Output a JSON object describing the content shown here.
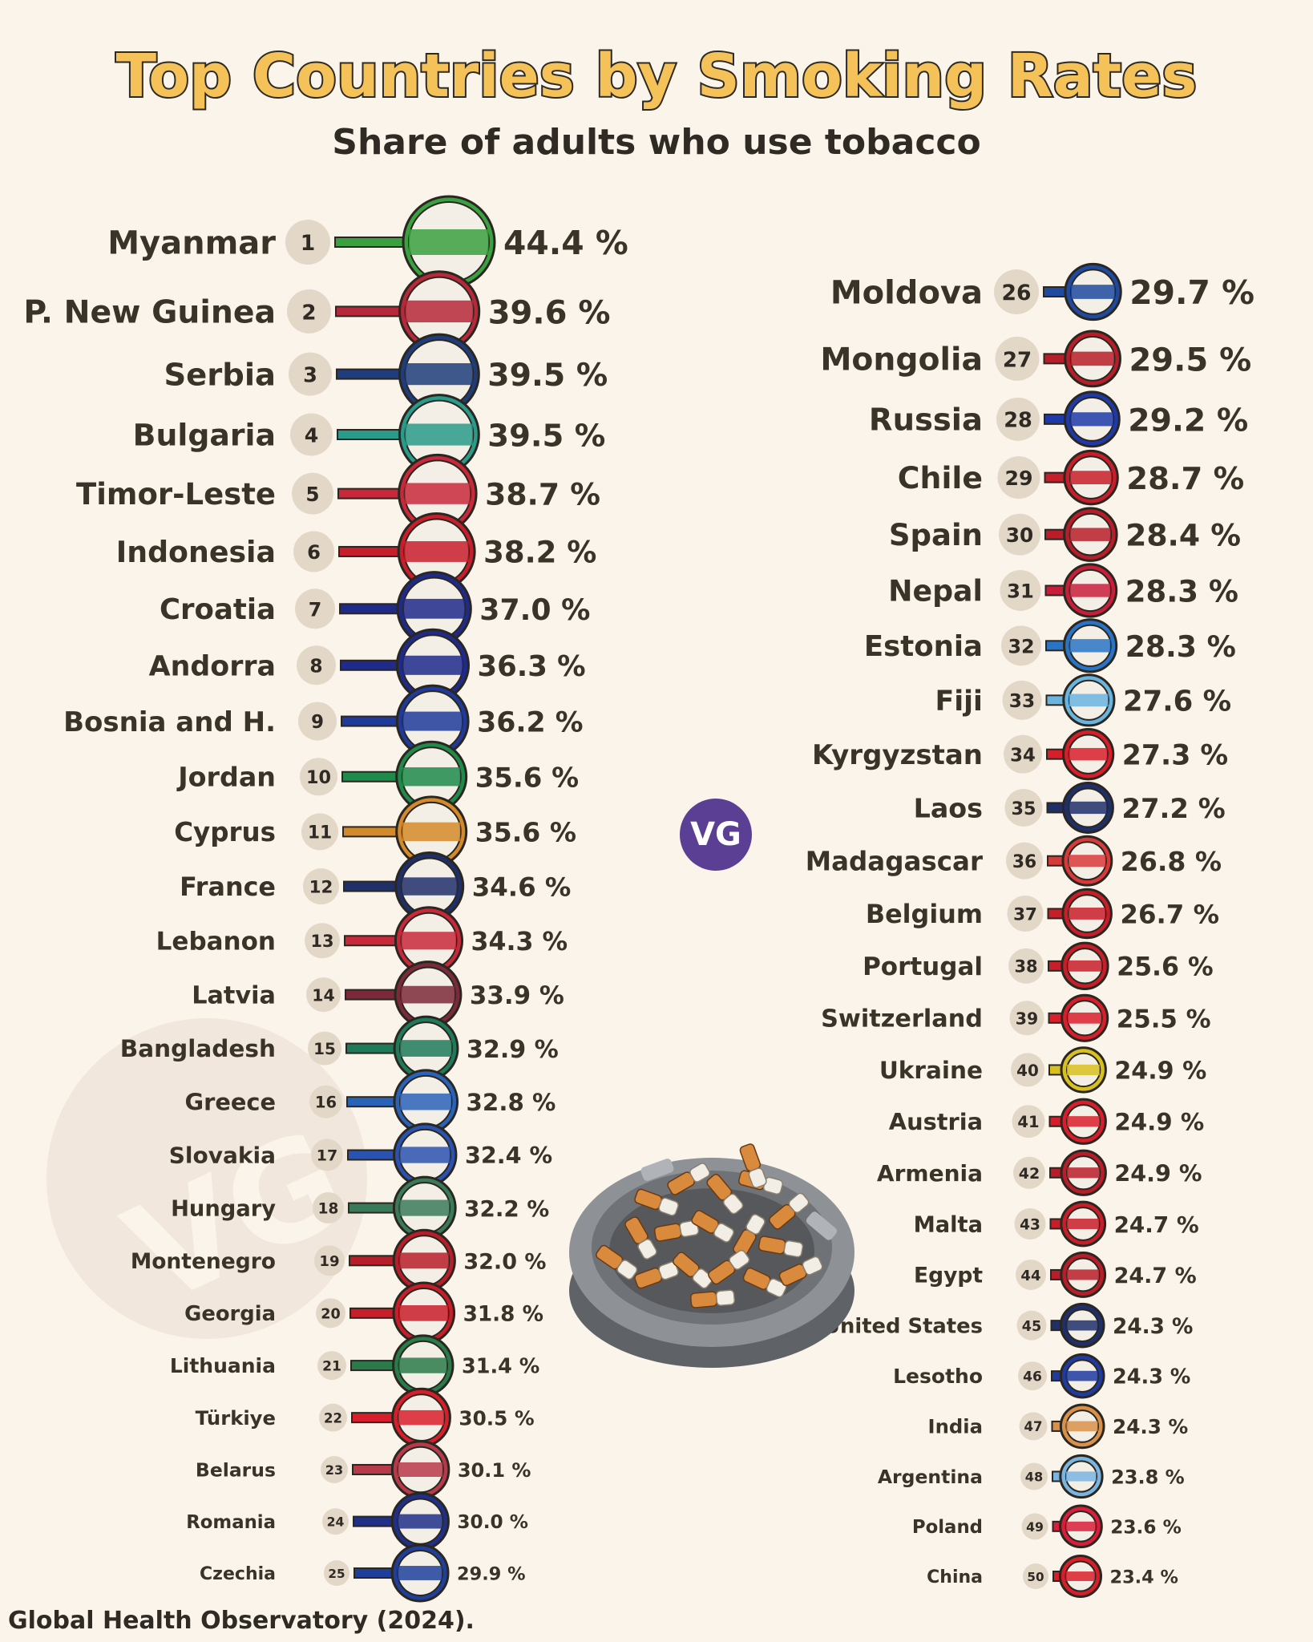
{
  "header": {
    "title": "Top Countries by Smoking Rates",
    "subtitle": "Share of adults who use tobacco"
  },
  "source": "Global Health Observatory (2024).",
  "logo": "VG",
  "icons": [
    "ashtray-icon"
  ],
  "chart_data": {
    "type": "bar",
    "title": "Top Countries by Smoking Rates",
    "subtitle": "Share of adults who use tobacco",
    "unit": "%",
    "xlabel": "",
    "ylabel": "",
    "ylim": [
      0,
      44.4
    ],
    "grid": false,
    "legend": "none",
    "categories": [
      "Myanmar",
      "P. New Guinea",
      "Serbia",
      "Bulgaria",
      "Timor-Leste",
      "Indonesia",
      "Croatia",
      "Andorra",
      "Bosnia and H.",
      "Jordan",
      "Cyprus",
      "France",
      "Lebanon",
      "Latvia",
      "Bangladesh",
      "Greece",
      "Slovakia",
      "Hungary",
      "Montenegro",
      "Georgia",
      "Lithuania",
      "Türkiye",
      "Belarus",
      "Romania",
      "Czechia",
      "Moldova",
      "Mongolia",
      "Russia",
      "Chile",
      "Spain",
      "Nepal",
      "Estonia",
      "Fiji",
      "Kyrgyzstan",
      "Laos",
      "Madagascar",
      "Belgium",
      "Portugal",
      "Switzerland",
      "Ukraine",
      "Austria",
      "Armenia",
      "Malta",
      "Egypt",
      "United States",
      "Lesotho",
      "India",
      "Argentina",
      "Poland",
      "China"
    ],
    "ranks": [
      "1",
      "2",
      "3",
      "4",
      "5",
      "6",
      "7",
      "8",
      "9",
      "10",
      "11",
      "12",
      "13",
      "14",
      "15",
      "16",
      "17",
      "18",
      "19",
      "20",
      "21",
      "22",
      "23",
      "24",
      "25",
      "26",
      "27",
      "28",
      "29",
      "30",
      "31",
      "32",
      "33",
      "34",
      "35",
      "36",
      "37",
      "38",
      "39",
      "40",
      "41",
      "42",
      "43",
      "44",
      "45",
      "46",
      "47",
      "48",
      "49",
      "50"
    ],
    "values": [
      44.4,
      39.6,
      39.5,
      39.5,
      38.7,
      38.2,
      37.0,
      36.3,
      36.2,
      35.6,
      35.6,
      34.6,
      34.3,
      33.9,
      32.9,
      32.8,
      32.4,
      32.2,
      32.0,
      31.8,
      31.4,
      30.5,
      30.1,
      30.0,
      29.9,
      29.7,
      29.5,
      29.2,
      28.7,
      28.4,
      28.3,
      28.3,
      27.6,
      27.3,
      27.2,
      26.8,
      26.7,
      25.6,
      25.5,
      24.9,
      24.9,
      24.9,
      24.7,
      24.7,
      24.3,
      24.3,
      24.3,
      23.8,
      23.6,
      23.4
    ],
    "value_labels": [
      "44.4 %",
      "39.6 %",
      "39.5 %",
      "39.5 %",
      "38.7 %",
      "38.2 %",
      "37.0 %",
      "36.3 %",
      "36.2 %",
      "35.6 %",
      "35.6 %",
      "34.6 %",
      "34.3 %",
      "33.9 %",
      "32.9 %",
      "32.8 %",
      "32.4 %",
      "32.2 %",
      "32.0 %",
      "31.8 %",
      "31.4 %",
      "30.5 %",
      "30.1 %",
      "30.0 %",
      "29.9 %",
      "29.7 %",
      "29.5 %",
      "29.2 %",
      "28.7 %",
      "28.4 %",
      "28.3 %",
      "28.3 %",
      "27.6 %",
      "27.3 %",
      "27.2 %",
      "26.8 %",
      "26.7 %",
      "25.6 %",
      "25.5 %",
      "24.9 %",
      "24.9 %",
      "24.9 %",
      "24.7 %",
      "24.7 %",
      "24.3 %",
      "24.3 %",
      "24.3 %",
      "23.8 %",
      "23.6 %",
      "23.4 %"
    ],
    "colors": [
      "#3aa040",
      "#b6283a",
      "#1f3d7a",
      "#2a9a8a",
      "#c8283a",
      "#c81e2c",
      "#1f2a8a",
      "#1f2a8a",
      "#1f3a9a",
      "#1f8a4a",
      "#d4892a",
      "#1f2f6a",
      "#c8283a",
      "#7a2a3a",
      "#1f7a5a",
      "#2a62b8",
      "#2a52b0",
      "#3a7a5a",
      "#b81e2a",
      "#c81e2a",
      "#2a7a4a",
      "#d81e2a",
      "#b83a4a",
      "#1f2f8a",
      "#1f3f9a",
      "#1f4aa0",
      "#b81e2a",
      "#1f3aa8",
      "#c81e2a",
      "#b81e2a",
      "#c81e3a",
      "#2a74c8",
      "#6ab4e0",
      "#d81e2a",
      "#1f2f6a",
      "#d83a3a",
      "#c81e2a",
      "#c81e2a",
      "#d81e2a",
      "#d8c020",
      "#d81e2a",
      "#b81e2a",
      "#c81e2a",
      "#b81e2a",
      "#1f2f6a",
      "#1f3aa0",
      "#d8904a",
      "#7ab4e0",
      "#d81e3a",
      "#d81e2a"
    ]
  }
}
